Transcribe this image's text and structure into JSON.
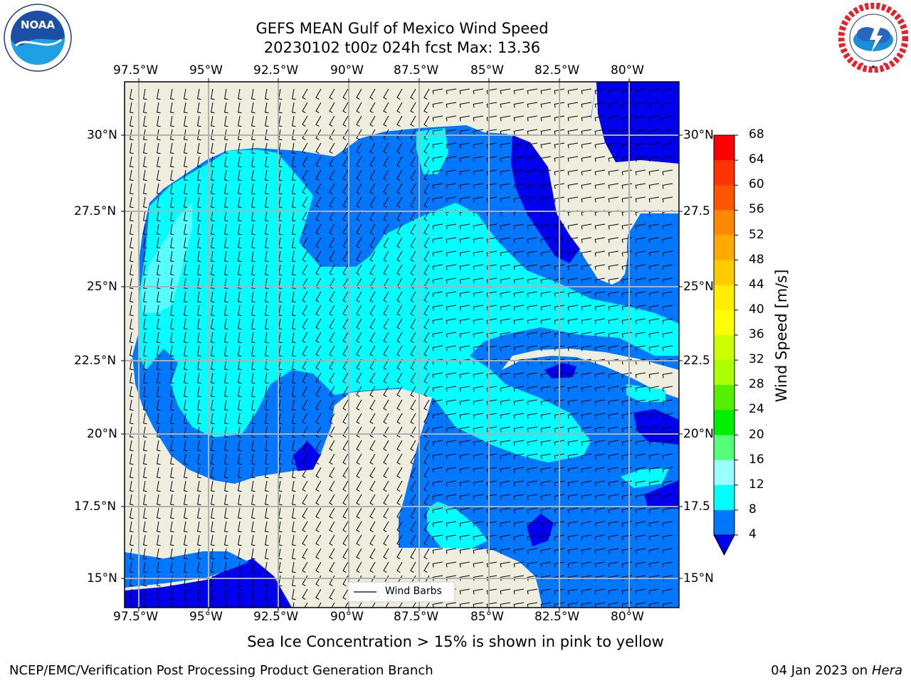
{
  "header": {
    "title_line1": "GEFS MEAN Gulf of Mexico Wind Speed",
    "title_line2": "20230102 t00z 024h fcst   Max: 13.36"
  },
  "logos": {
    "left": {
      "name": "noaa-logo",
      "text": "NOAA"
    },
    "right": {
      "name": "nws-logo"
    }
  },
  "map": {
    "lon_labels": [
      "97.5°W",
      "95°W",
      "92.5°W",
      "90°W",
      "87.5°W",
      "85°W",
      "82.5°W",
      "80°W"
    ],
    "lat_labels_left": [
      "30°N",
      "27.5°N",
      "25°N",
      "22.5°N",
      "20°N",
      "17.5°N",
      "15°N"
    ],
    "lat_labels_right": [
      "30°N",
      "27.5",
      "25°N",
      "22.5",
      "20°N",
      "17.5",
      "15°N"
    ],
    "legend_label": "Wind Barbs",
    "colors": {
      "land": "#efedde",
      "wind_4_8": "#0077ff",
      "wind_8_12": "#00ffff",
      "wind_12_16": "#44ffff",
      "wind_lt4": "#0000ee",
      "grid": "#b0b0b0"
    }
  },
  "colorbar": {
    "label": "Wind Speed [m/s]",
    "ticks": [
      "68",
      "64",
      "60",
      "56",
      "52",
      "48",
      "44",
      "40",
      "36",
      "32",
      "28",
      "24",
      "20",
      "16",
      "12",
      "8",
      "4"
    ],
    "colors": [
      "#ff0000",
      "#ff3300",
      "#ff5500",
      "#ff8800",
      "#ffaa00",
      "#ffcc00",
      "#ffee00",
      "#ffff00",
      "#eeff00",
      "#ccff00",
      "#aaff00",
      "#66ff00",
      "#00ee00",
      "#00dd00",
      "#55ff77",
      "#99ffff",
      "#55ffff",
      "#00ffff",
      "#00ffff",
      "#0077ff",
      "#0000ee"
    ]
  },
  "caption": "Sea Ice Concentration > 15% is shown in pink to yellow",
  "footer": {
    "left": "NCEP/EMC/Verification Post Processing Product Generation Branch",
    "right_date": "04 Jan 2023 on ",
    "right_host": "Hera"
  }
}
